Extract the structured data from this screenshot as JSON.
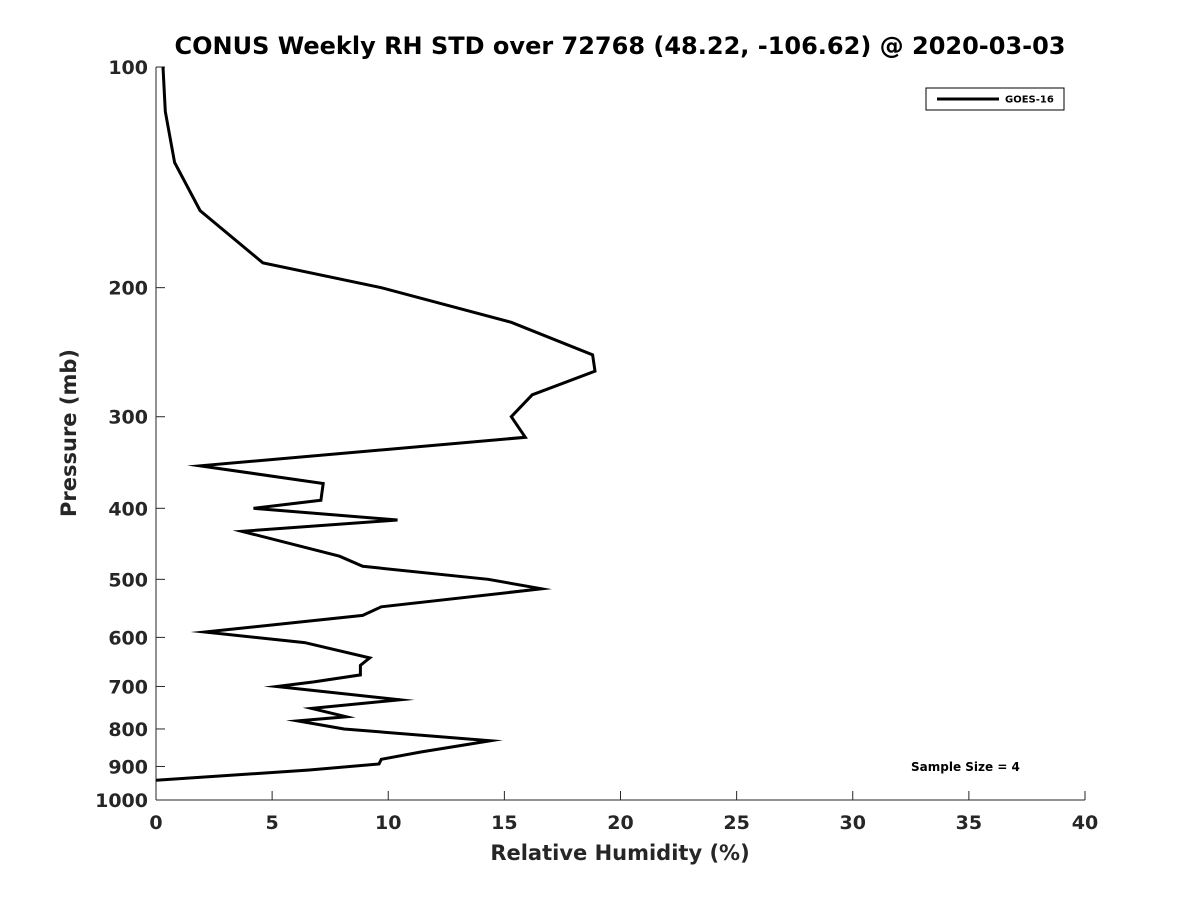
{
  "chart_data": {
    "type": "line",
    "title": "CONUS Weekly RH STD over 72768 (48.22, -106.62) @ 2020-03-03",
    "xlabel": "Relative Humidity (%)",
    "ylabel": "Pressure (mb)",
    "xlim": [
      0,
      40
    ],
    "ylim": [
      100,
      1000
    ],
    "y_scale": "log",
    "y_direction": "reversed",
    "x_ticks": [
      0,
      5,
      10,
      15,
      20,
      25,
      30,
      35,
      40
    ],
    "y_ticks": [
      100,
      200,
      300,
      400,
      500,
      600,
      700,
      800,
      900,
      1000
    ],
    "grid": false,
    "legend": {
      "position": "top-right",
      "entries": [
        "GOES-16"
      ]
    },
    "annotations": [
      "Sample Size = 4"
    ],
    "series": [
      {
        "name": "GOES-16",
        "color": "#000000",
        "points": [
          [
            0.3,
            100
          ],
          [
            0.4,
            115
          ],
          [
            0.8,
            135
          ],
          [
            1.9,
            157
          ],
          [
            4.6,
            185
          ],
          [
            9.7,
            200
          ],
          [
            15.3,
            223
          ],
          [
            18.8,
            247
          ],
          [
            18.9,
            260
          ],
          [
            16.2,
            280
          ],
          [
            15.3,
            300
          ],
          [
            15.9,
            320
          ],
          [
            1.9,
            350
          ],
          [
            7.2,
            370
          ],
          [
            7.1,
            390
          ],
          [
            4.2,
            400
          ],
          [
            10.4,
            415
          ],
          [
            3.7,
            430
          ],
          [
            7.9,
            465
          ],
          [
            8.9,
            480
          ],
          [
            14.3,
            500
          ],
          [
            16.6,
            515
          ],
          [
            9.7,
            545
          ],
          [
            8.9,
            560
          ],
          [
            2.1,
            590
          ],
          [
            6.4,
            610
          ],
          [
            9.2,
            640
          ],
          [
            8.8,
            655
          ],
          [
            8.8,
            675
          ],
          [
            6.8,
            690
          ],
          [
            5.2,
            700
          ],
          [
            10.5,
            730
          ],
          [
            6.7,
            750
          ],
          [
            8.2,
            770
          ],
          [
            6.1,
            780
          ],
          [
            8.1,
            800
          ],
          [
            14.4,
            830
          ],
          [
            11.4,
            860
          ],
          [
            9.7,
            880
          ],
          [
            9.6,
            893
          ],
          [
            6.6,
            910
          ],
          [
            0.0,
            940
          ]
        ]
      }
    ]
  }
}
